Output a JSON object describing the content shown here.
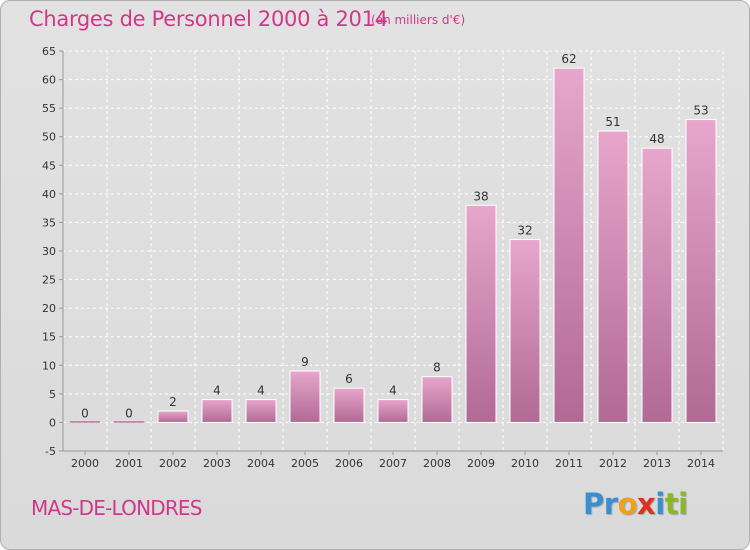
{
  "header": {
    "title": "Charges de Personnel 2000 à 2014",
    "subtitle": "(en milliers d'€)"
  },
  "footer": {
    "commune": "MAS-DE-LONDRES",
    "logo_letters": [
      {
        "char": "P",
        "color": "#3a8fd0"
      },
      {
        "char": "r",
        "color": "#3a8fd0"
      },
      {
        "char": "o",
        "color": "#f0a020"
      },
      {
        "char": "x",
        "color": "#e03020"
      },
      {
        "char": "i",
        "color": "#3a8fd0"
      },
      {
        "char": "t",
        "color": "#88b828"
      },
      {
        "char": "i",
        "color": "#88b828"
      }
    ]
  },
  "colors": {
    "bar_light": "#e8a6cc",
    "bar_dark": "#b06a94",
    "grid": "#ffffff",
    "axis": "#999999"
  },
  "chart_data": {
    "type": "bar",
    "categories": [
      "2000",
      "2001",
      "2002",
      "2003",
      "2004",
      "2005",
      "2006",
      "2007",
      "2008",
      "2009",
      "2010",
      "2011",
      "2012",
      "2013",
      "2014"
    ],
    "values": [
      0,
      0,
      2,
      4,
      4,
      9,
      6,
      4,
      8,
      38,
      32,
      62,
      51,
      48,
      53
    ],
    "data_labels": [
      "0",
      "0",
      "2",
      "4",
      "4",
      "9",
      "6",
      "4",
      "8",
      "38",
      "32",
      "62",
      "51",
      "48",
      "53"
    ],
    "title": "Charges de Personnel 2000 à 2014",
    "xlabel": "",
    "ylabel": "",
    "ylim": [
      -5,
      65
    ],
    "yticks": [
      -5,
      0,
      5,
      10,
      15,
      20,
      25,
      30,
      35,
      40,
      45,
      50,
      55,
      60,
      65
    ],
    "grid": true,
    "legend": "none"
  }
}
